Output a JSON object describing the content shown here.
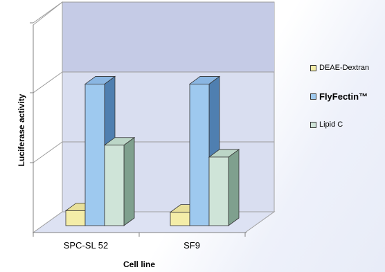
{
  "chart_data": {
    "type": "bar",
    "subtype": "3d-clustered-column",
    "categories": [
      "SPC-SL 52",
      "SF9"
    ],
    "series": [
      {
        "name": "DEAE-Dextran",
        "values": [
          1.0,
          0.9
        ],
        "color": "#f4eda8",
        "side": "#c9c07a",
        "top": "#e8e09a"
      },
      {
        "name": "FlyFectin™",
        "values": [
          9.5,
          9.5
        ],
        "color": "#9ec9ef",
        "side": "#4f7fb0",
        "top": "#8ab6e2"
      },
      {
        "name": "Lipid C",
        "values": [
          5.4,
          4.6
        ],
        "color": "#cfe4d8",
        "side": "#7fa08e",
        "top": "#bcd6c7"
      }
    ],
    "xlabel": "Cell line",
    "ylabel": "Luciferase activity",
    "ylim": [
      0,
      15
    ],
    "gridlines": [
      5,
      10,
      15
    ],
    "grid": true,
    "legend_position": "right",
    "y_tick_labels_shown": false
  },
  "legend": {
    "items": [
      {
        "label": "DEAE-Dextran",
        "color": "#f4eda8",
        "bold": false,
        "font_size": 11
      },
      {
        "label": "FlyFectin™",
        "color": "#9ec9ef",
        "bold": true,
        "font_size": 13
      },
      {
        "label": "Lipid C",
        "color": "#cfe4d8",
        "bold": false,
        "font_size": 11
      }
    ]
  }
}
